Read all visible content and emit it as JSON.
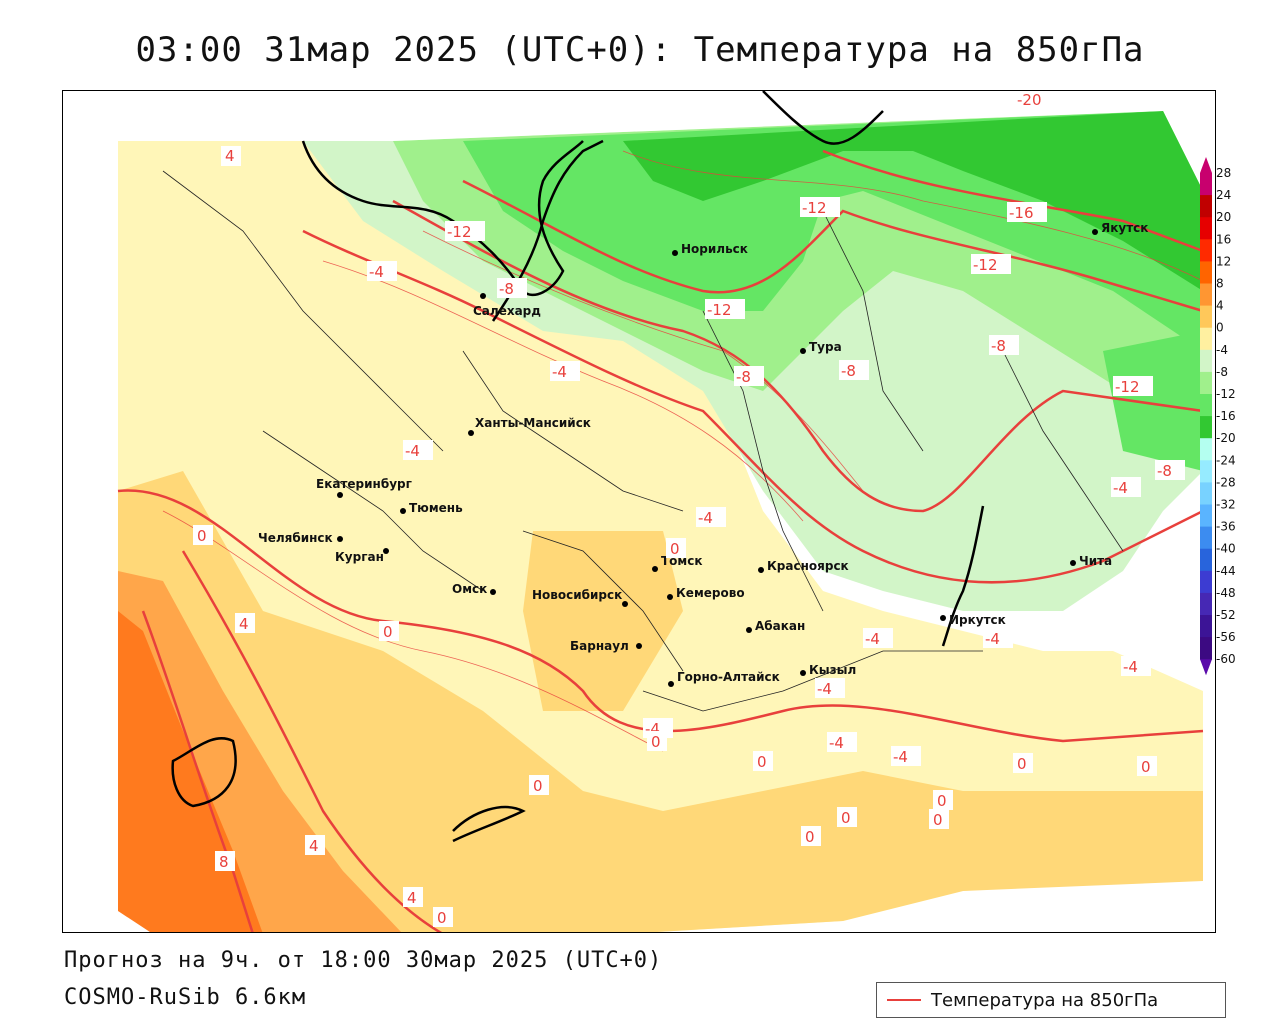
{
  "title": "03:00 31мар 2025 (UTC+0): Температура на 850гПа",
  "footer": {
    "forecast": "Прогноз на 9ч. от 18:00 30мар 2025 (UTC+0)",
    "model": "COSMO-RuSib 6.6км"
  },
  "legend": {
    "label": "Температура на 850гПа",
    "line_color": "#e8403c"
  },
  "colors": {
    "isoline": "#e8403c",
    "coast": "#000000",
    "border": "#222222"
  },
  "cities": [
    {
      "name": "Норильск"
    },
    {
      "name": "Салехард"
    },
    {
      "name": "Якутск"
    },
    {
      "name": "Тура"
    },
    {
      "name": "Ханты-Мансийск"
    },
    {
      "name": "Екатеринбург"
    },
    {
      "name": "Тюмень"
    },
    {
      "name": "Челябинск"
    },
    {
      "name": "Курган"
    },
    {
      "name": "Омск"
    },
    {
      "name": "Новосибирск"
    },
    {
      "name": "Томск"
    },
    {
      "name": "Кемерово"
    },
    {
      "name": "Красноярск"
    },
    {
      "name": "Абакан"
    },
    {
      "name": "Барнаул"
    },
    {
      "name": "Горно-Алтайск"
    },
    {
      "name": "Кызыл"
    },
    {
      "name": "Иркутск"
    },
    {
      "name": "Чита"
    }
  ],
  "isoline_labels": [
    "4",
    "-12",
    "-4",
    "-8",
    "-12",
    "-12",
    "-16",
    "-12",
    "-8",
    "-8",
    "-8",
    "-12",
    "-4",
    "-4",
    "-4",
    "-8",
    "0",
    "-4",
    "0",
    "0",
    "4",
    "0",
    "-4",
    "-4",
    "-4",
    "-4",
    "-4",
    "-4",
    "-4",
    "0",
    "0",
    "0",
    "0",
    "0",
    "0",
    "0",
    "0",
    "4",
    "8",
    "4",
    "0",
    "-20"
  ],
  "scale": {
    "values": [
      "28",
      "24",
      "20",
      "16",
      "12",
      "8",
      "4",
      "0",
      "-4",
      "-8",
      "-12",
      "-16",
      "-20",
      "-24",
      "-28",
      "-32",
      "-36",
      "-40",
      "-44",
      "-48",
      "-52",
      "-56",
      "-60"
    ],
    "colors": [
      "#c8006e",
      "#c00000",
      "#e60000",
      "#ff2a00",
      "#ff6400",
      "#ff9632",
      "#ffc85a",
      "#fff0a0",
      "#d2f5c8",
      "#a0f08c",
      "#64e664",
      "#32c832",
      "#b4fff0",
      "#96ebff",
      "#78d2ff",
      "#5ab4ff",
      "#3c8cf0",
      "#2864dc",
      "#3c3cd2",
      "#4628b4",
      "#3c1496",
      "#3c0a82",
      "#5a0aaa"
    ]
  }
}
